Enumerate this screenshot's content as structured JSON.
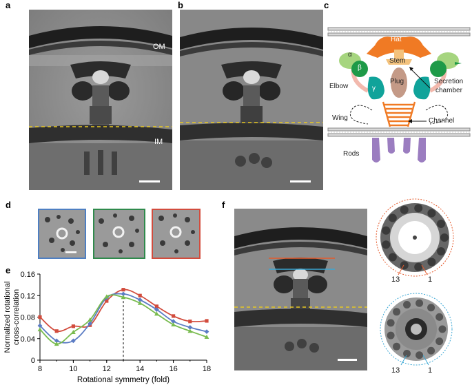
{
  "panel_letters": {
    "a": "a",
    "b": "b",
    "c": "c",
    "d": "d",
    "e": "e",
    "f": "f"
  },
  "panel_a": {
    "labels": {
      "om": "OM",
      "im": "IM"
    }
  },
  "panel_c": {
    "labels": {
      "hat": "Hat",
      "stem": "Stem",
      "plug": "Plug",
      "alpha": "α",
      "beta": "β",
      "gamma": "γ",
      "elbow": "Elbow",
      "secretion_line1": "Secretion",
      "secretion_line2": "chamber",
      "wing": "Wing",
      "channel": "Channel",
      "rods": "Rods"
    },
    "colors": {
      "hat": "#f07a24",
      "stem": "#f3c27d",
      "plug": "#c49a87",
      "alpha": "#a6d57f",
      "beta": "#1e9a48",
      "gamma": "#10a39a",
      "elbow": "#f2b9ad",
      "channel": "#f07a24",
      "rods": "#9b7dc0"
    }
  },
  "panel_d": {
    "frame_colors": [
      "#4e7fc2",
      "#2f8a4c",
      "#d24c3d"
    ]
  },
  "panel_f": {
    "red_line_color": "#e55a2b",
    "blue_line_color": "#3aa7d5",
    "top_ring_labels": [
      "13",
      "1"
    ],
    "bottom_ring_labels": [
      "13",
      "1"
    ]
  },
  "chart_data": {
    "type": "line",
    "xlabel": "Rotational symmetry (fold)",
    "ylabel_line1": "Normalized rotational",
    "ylabel_line2": "cross-correlation",
    "xlim": [
      8,
      18
    ],
    "ylim": [
      0,
      0.16
    ],
    "xticks": [
      "8",
      "10",
      "12",
      "14",
      "16",
      "18"
    ],
    "yticks": [
      "0",
      "0.04",
      "0.08",
      "0.12",
      "0.16"
    ],
    "marker_line_x": 13,
    "series": [
      {
        "color": "#d24c3d",
        "marker": "square",
        "x": [
          8,
          9,
          10,
          11,
          12,
          13,
          14,
          15,
          16,
          17,
          18
        ],
        "y": [
          0.08,
          0.054,
          0.063,
          0.065,
          0.11,
          0.131,
          0.12,
          0.1,
          0.082,
          0.072,
          0.073
        ]
      },
      {
        "color": "#5b7cc4",
        "marker": "diamond",
        "x": [
          8,
          9,
          10,
          11,
          12,
          13,
          14,
          15,
          16,
          17,
          18
        ],
        "y": [
          0.064,
          0.036,
          0.036,
          0.068,
          0.116,
          0.123,
          0.112,
          0.094,
          0.072,
          0.061,
          0.053
        ]
      },
      {
        "color": "#78bb4e",
        "marker": "triangle",
        "x": [
          8,
          9,
          10,
          11,
          12,
          13,
          14,
          15,
          16,
          17,
          18
        ],
        "y": [
          0.057,
          0.03,
          0.052,
          0.075,
          0.118,
          0.117,
          0.106,
          0.086,
          0.066,
          0.054,
          0.043
        ]
      }
    ]
  }
}
